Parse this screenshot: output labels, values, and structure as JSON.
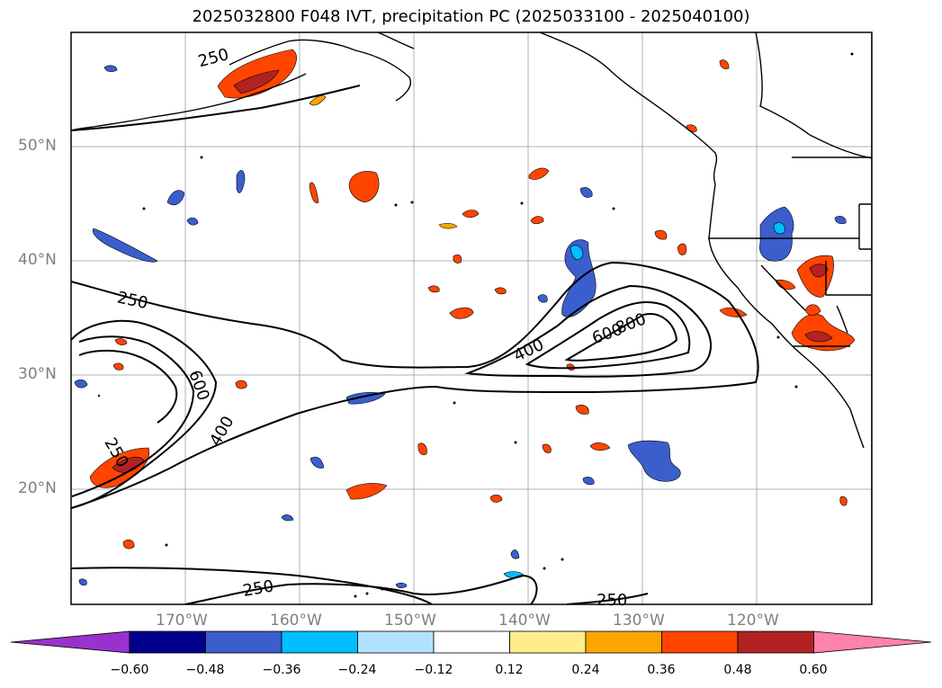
{
  "title": "2025032800 F048 IVT, precipitation PC (2025033100 - 2025040100)",
  "lat_labels": [
    "50°N",
    "40°N",
    "30°N",
    "20°N"
  ],
  "lon_labels": [
    "170°W",
    "160°W",
    "150°W",
    "140°W",
    "130°W",
    "120°W"
  ],
  "contour_labels": [
    {
      "text": "250",
      "rot": -15
    },
    {
      "text": "250",
      "rot": 12
    },
    {
      "text": "600",
      "rot": 70
    },
    {
      "text": "400",
      "rot": -60
    },
    {
      "text": "250",
      "rot": 60
    },
    {
      "text": "400",
      "rot": -25
    },
    {
      "text": "600",
      "rot": -20
    },
    {
      "text": "800",
      "rot": -20
    },
    {
      "text": "250",
      "rot": -10
    },
    {
      "text": "250",
      "rot": 0
    }
  ],
  "colorbar": {
    "colors": [
      "#9932cc",
      "#00008b",
      "#3a5fcd",
      "#00bfff",
      "#b0e2ff",
      "#ffffff",
      "#ffec8b",
      "#ffa500",
      "#ff4500",
      "#b22222",
      "#ff82ab"
    ],
    "ticks": [
      "−0.60",
      "−0.48",
      "−0.36",
      "−0.24",
      "−0.12",
      "0.12",
      "0.24",
      "0.36",
      "0.48",
      "0.60"
    ]
  }
}
